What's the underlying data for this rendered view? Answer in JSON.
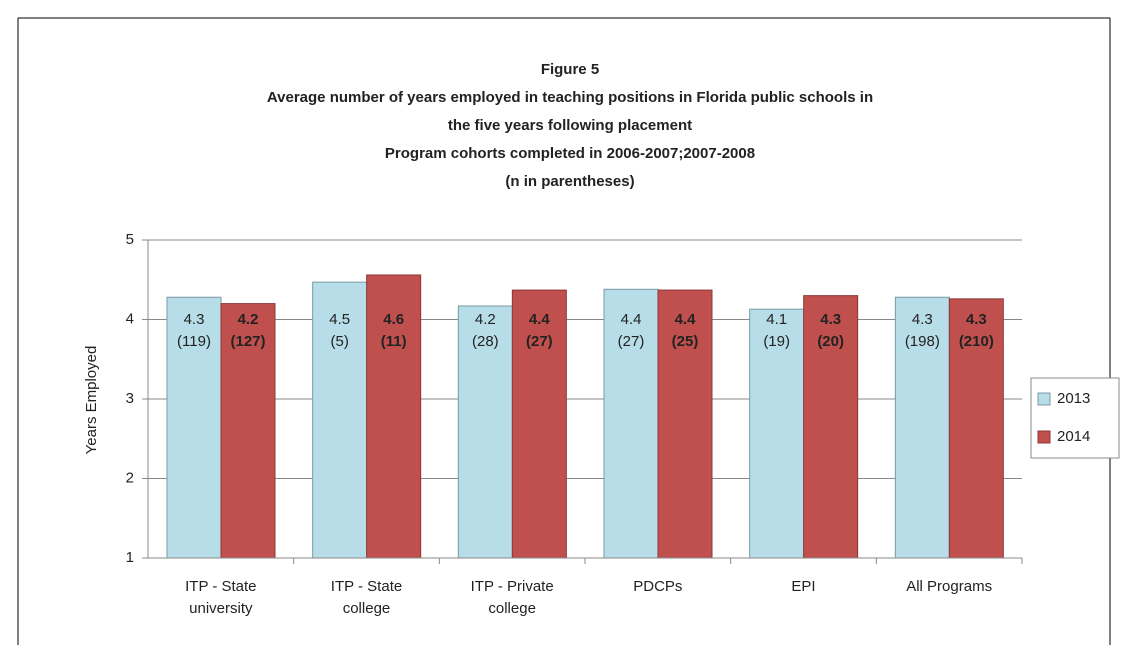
{
  "chart_data": {
    "type": "bar",
    "title": [
      "Figure 5",
      "Average number of years employed in teaching positions in Florida public schools in",
      "the five years following placement",
      "Program cohorts completed in 2006-2007;2007-2008",
      "(n in parentheses)"
    ],
    "y_label": "Years Employed",
    "categories": [
      "ITP - State university",
      "ITP - State college",
      "ITP - Private college",
      "PDCPs",
      "EPI",
      "All Programs"
    ],
    "series": [
      {
        "name": "2013",
        "color": "#b7dde8",
        "values": [
          4.28,
          4.47,
          4.17,
          4.38,
          4.13,
          4.28
        ],
        "value_labels": [
          "4.3",
          "4.5",
          "4.2",
          "4.4",
          "4.1",
          "4.3"
        ],
        "count_labels": [
          "(119)",
          "(5)",
          "(28)",
          "(27)",
          "(19)",
          "(198)"
        ]
      },
      {
        "name": "2014",
        "color": "#c0504d",
        "values": [
          4.2,
          4.56,
          4.37,
          4.37,
          4.3,
          4.26
        ],
        "value_labels": [
          "4.2",
          "4.6",
          "4.4",
          "4.4",
          "4.3",
          "4.3"
        ],
        "count_labels": [
          "(127)",
          "(11)",
          "(27)",
          "(25)",
          "(20)",
          "(210)"
        ]
      }
    ],
    "ylim": [
      1,
      5
    ],
    "yticks": [
      1,
      2,
      3,
      4,
      5
    ],
    "grid": true,
    "legend": "right"
  }
}
